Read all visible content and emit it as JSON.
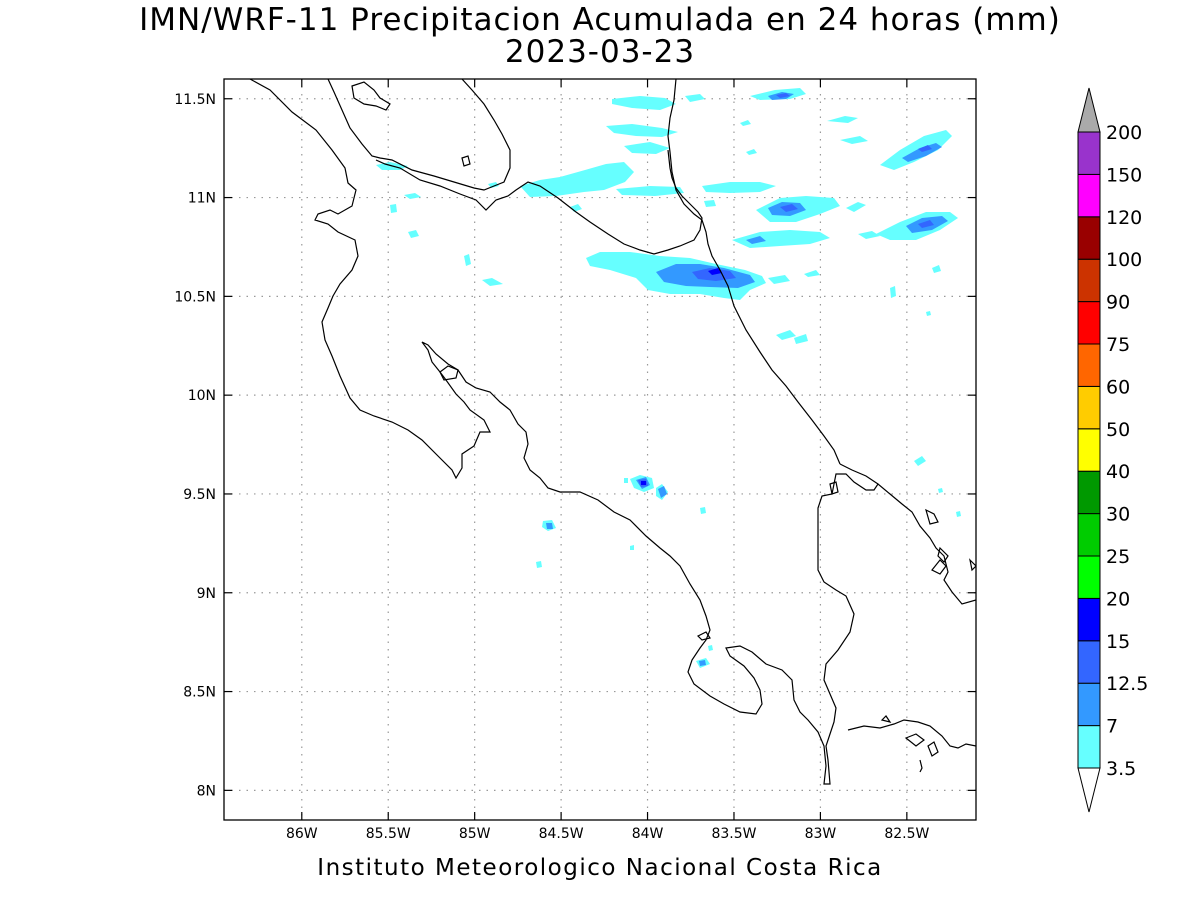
{
  "title_line1": "IMN/WRF-11 Precipitacion Acumulada en 24 horas (mm)",
  "title_line2": "2023-03-23",
  "footer": "Instituto Meteorologico Nacional Costa Rica",
  "map": {
    "lon_range": [
      -86.45,
      -82.1
    ],
    "lat_range": [
      7.85,
      11.6
    ],
    "lon_ticks": [
      {
        "value": -86.0,
        "label": "86W"
      },
      {
        "value": -85.5,
        "label": "85.5W"
      },
      {
        "value": -85.0,
        "label": "85W"
      },
      {
        "value": -84.5,
        "label": "84.5W"
      },
      {
        "value": -84.0,
        "label": "84W"
      },
      {
        "value": -83.5,
        "label": "83.5W"
      },
      {
        "value": -83.0,
        "label": "83W"
      },
      {
        "value": -82.5,
        "label": "82.5W"
      }
    ],
    "lat_ticks": [
      {
        "value": 11.5,
        "label": "11.5N"
      },
      {
        "value": 11.0,
        "label": "11N"
      },
      {
        "value": 10.5,
        "label": "10.5N"
      },
      {
        "value": 10.0,
        "label": "10N"
      },
      {
        "value": 9.5,
        "label": "9.5N"
      },
      {
        "value": 9.0,
        "label": "9N"
      },
      {
        "value": 8.5,
        "label": "8.5N"
      },
      {
        "value": 8.0,
        "label": "8N"
      }
    ],
    "grid": "dotted",
    "coastline_color": "#000000"
  },
  "colorbar": {
    "levels": [
      "3.5",
      "7",
      "12.5",
      "15",
      "20",
      "25",
      "30",
      "40",
      "50",
      "60",
      "75",
      "90",
      "100",
      "120",
      "150",
      "200"
    ],
    "colors": [
      "#66ffff",
      "#3399ff",
      "#3366ff",
      "#0000ff",
      "#00ff00",
      "#00cc00",
      "#009900",
      "#ffff00",
      "#ffcc00",
      "#ff6600",
      "#ff0000",
      "#cc3300",
      "#990000",
      "#ff00ff",
      "#9933cc",
      "#f5f5f5"
    ],
    "lower_extension_color": "#ffffff",
    "upper_extension_color": "#aaaaaa",
    "placement": "right"
  },
  "precip_colors": {
    "light": "#66ffff",
    "mid": "#3399ff",
    "heavy": "#3366ff",
    "core": "#0000ff"
  }
}
